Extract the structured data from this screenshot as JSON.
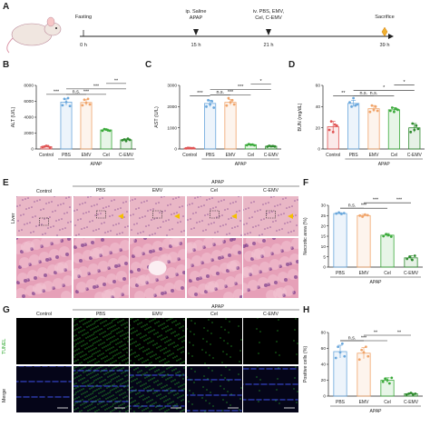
{
  "panels": {
    "A": "A",
    "B": "B",
    "C": "C",
    "D": "D",
    "E": "E",
    "F": "F",
    "G": "G",
    "H": "H"
  },
  "timeline": {
    "events": [
      {
        "time": "0 h",
        "label": "Fasting"
      },
      {
        "time": "15 h",
        "label": "ip. Saline, APAP"
      },
      {
        "time": "21 h",
        "label": "iv. PBS, EMV, Cel, C-EMV"
      },
      {
        "time": "39 h",
        "label": "Sacrifice"
      }
    ]
  },
  "groups": [
    "Control",
    "PBS",
    "EMV",
    "Cel",
    "C-EMV"
  ],
  "apap_label": "APAP",
  "colors": {
    "Control": "#e05555",
    "PBS": "#6aa7dc",
    "EMV": "#f0a46a",
    "Cel": "#3aaa3a",
    "C-EMV": "#2e8b2e"
  },
  "chart_data": [
    {
      "panel": "B",
      "type": "bar",
      "ylabel": "ALT (U/L)",
      "categories": [
        "Control",
        "PBS",
        "EMV",
        "Cel",
        "C-EMV"
      ],
      "values": [
        300,
        5900,
        5850,
        2400,
        1150
      ],
      "ylim": [
        0,
        8000
      ],
      "yticks": [
        0,
        2000,
        4000,
        6000,
        8000
      ],
      "points": [
        [
          250,
          300,
          400,
          350,
          200
        ],
        [
          5500,
          6300,
          5900,
          6400,
          5400
        ],
        [
          5500,
          6200,
          5800,
          6300,
          5600
        ],
        [
          2300,
          2500,
          2450,
          2350,
          2300
        ],
        [
          1100,
          1200,
          1000,
          1300,
          1150
        ]
      ],
      "errors": [
        100,
        400,
        350,
        120,
        120
      ],
      "sig": [
        {
          "a": 0,
          "b": 1,
          "t": "***"
        },
        {
          "a": 1,
          "b": 2,
          "t": "n.s."
        },
        {
          "a": 1,
          "b": 3,
          "t": "***"
        },
        {
          "a": 1,
          "b": 4,
          "t": "***"
        },
        {
          "a": 3,
          "b": 4,
          "t": "**"
        }
      ]
    },
    {
      "panel": "C",
      "type": "bar",
      "ylabel": "AST (U/L)",
      "categories": [
        "Control",
        "PBS",
        "EMV",
        "Cel",
        "C-EMV"
      ],
      "values": [
        40,
        2150,
        2200,
        200,
        130
      ],
      "ylim": [
        0,
        3000
      ],
      "yticks": [
        0,
        1000,
        2000,
        3000
      ],
      "points": [
        [
          30,
          50,
          45,
          35,
          40
        ],
        [
          2000,
          2300,
          2100,
          2250,
          1950
        ],
        [
          2050,
          2400,
          2200,
          2300,
          2100
        ],
        [
          180,
          230,
          200,
          210,
          170
        ],
        [
          110,
          150,
          130,
          140,
          120
        ]
      ],
      "errors": [
        10,
        150,
        130,
        40,
        20
      ],
      "sig": [
        {
          "a": 0,
          "b": 1,
          "t": "***"
        },
        {
          "a": 1,
          "b": 2,
          "t": "n.s."
        },
        {
          "a": 1,
          "b": 3,
          "t": "***"
        },
        {
          "a": 1,
          "b": 4,
          "t": "***"
        },
        {
          "a": 3,
          "b": 4,
          "t": "*"
        }
      ]
    },
    {
      "panel": "D",
      "type": "bar",
      "ylabel": "BUN (mg/dL)",
      "categories": [
        "Control",
        "PBS",
        "EMV",
        "Cel",
        "C-EMV"
      ],
      "values": [
        21,
        43,
        38,
        37,
        20
      ],
      "ylim": [
        0,
        60
      ],
      "yticks": [
        0,
        20,
        40,
        60
      ],
      "points": [
        [
          18,
          26,
          16,
          23,
          22
        ],
        [
          44,
          40,
          48,
          41,
          42
        ],
        [
          35,
          41,
          37,
          40,
          36
        ],
        [
          36,
          39,
          35,
          38,
          37
        ],
        [
          16,
          24,
          18,
          22,
          19
        ]
      ],
      "errors": [
        5,
        3,
        3,
        2,
        4
      ],
      "sig": [
        {
          "a": 0,
          "b": 1,
          "t": "**"
        },
        {
          "a": 1,
          "b": 2,
          "t": "n.s."
        },
        {
          "a": 1,
          "b": 3,
          "t": "n.s."
        },
        {
          "a": 1,
          "b": 4,
          "t": "*"
        },
        {
          "a": 3,
          "b": 4,
          "t": "*"
        }
      ]
    },
    {
      "panel": "F",
      "type": "bar",
      "ylabel": "Necrotic area (%)",
      "categories": [
        "PBS",
        "EMV",
        "Cel",
        "C-EMV"
      ],
      "values": [
        26,
        25,
        15.5,
        4.5
      ],
      "ylim": [
        0,
        30
      ],
      "yticks": [
        0,
        5,
        10,
        15,
        20,
        25,
        30
      ],
      "points": [
        [
          26,
          26.5,
          25.8,
          26.2
        ],
        [
          25,
          24.5,
          25.5,
          25.2
        ],
        [
          15,
          16,
          15.5,
          14.8
        ],
        [
          4,
          5,
          3.5,
          5.5
        ]
      ],
      "errors": [
        0.4,
        0.6,
        0.8,
        1
      ],
      "sig": [
        {
          "a": 0,
          "b": 1,
          "t": "n.s."
        },
        {
          "a": 0,
          "b": 2,
          "t": "***"
        },
        {
          "a": 1,
          "b": 2,
          "t": "***"
        },
        {
          "a": 2,
          "b": 3,
          "t": "***"
        }
      ]
    },
    {
      "panel": "H",
      "type": "bar",
      "ylabel": "Positive cells (%)",
      "categories": [
        "PBS",
        "EMV",
        "Cel",
        "C-EMV"
      ],
      "values": [
        56,
        54,
        20,
        3
      ],
      "ylim": [
        0,
        80
      ],
      "yticks": [
        0,
        20,
        40,
        60,
        80
      ],
      "points": [
        [
          48,
          62,
          55,
          66,
          50
        ],
        [
          46,
          58,
          55,
          62,
          50
        ],
        [
          18,
          22,
          20,
          16,
          23
        ],
        [
          2,
          3,
          4,
          2,
          3
        ]
      ],
      "errors": [
        8,
        7,
        3,
        1
      ],
      "sig": [
        {
          "a": 0,
          "b": 1,
          "t": "n.s."
        },
        {
          "a": 0,
          "b": 2,
          "t": "***"
        },
        {
          "a": 1,
          "b": 2,
          "t": "**"
        },
        {
          "a": 2,
          "b": 3,
          "t": "**"
        }
      ]
    }
  ],
  "histology": {
    "row_label": "Liver",
    "cols": [
      "Control",
      "PBS",
      "EMV",
      "Cel",
      "C-EMV"
    ]
  },
  "fluorescence": {
    "rows": [
      "TUNEL",
      "Merge"
    ],
    "cols": [
      "Control",
      "PBS",
      "EMV",
      "Cel",
      "C-EMV"
    ]
  }
}
